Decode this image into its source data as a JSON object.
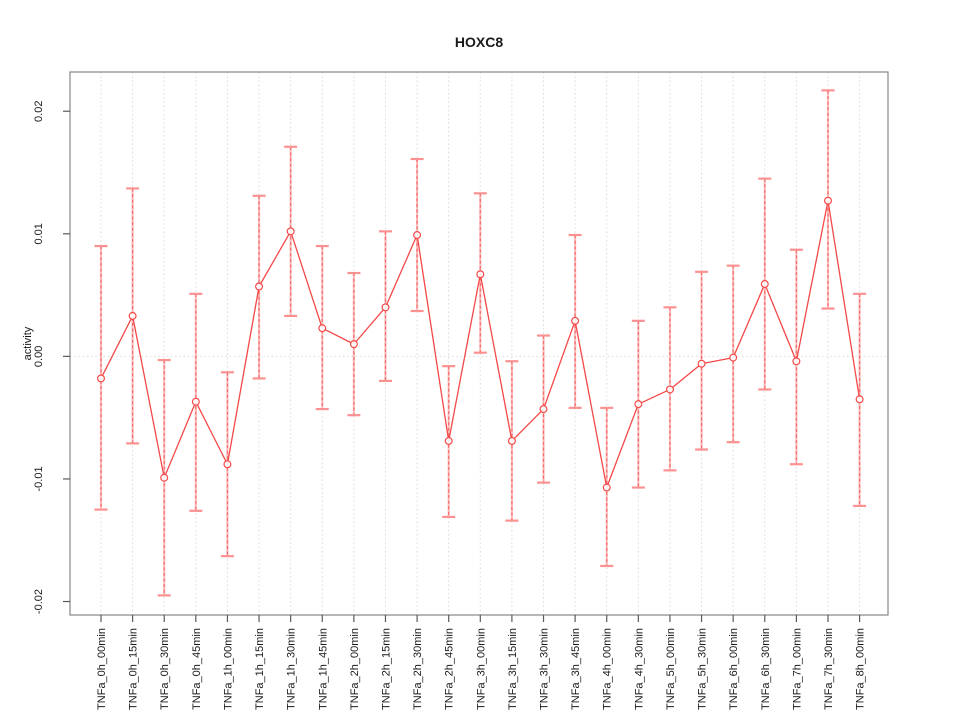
{
  "figure": {
    "background": "#ffffff"
  },
  "chart_data": {
    "type": "line",
    "title": "HOXC8",
    "xlabel": "",
    "ylabel": "activity",
    "legend": "none",
    "grid": {
      "vertical_gridlines": "dotted",
      "zero_line": "dotted"
    },
    "marker": "open-circle",
    "error_bars": true,
    "categories": [
      "TNFa_0h_00min",
      "TNFa_0h_15min",
      "TNFa_0h_30min",
      "TNFa_0h_45min",
      "TNFa_1h_00min",
      "TNFa_1h_15min",
      "TNFa_1h_30min",
      "TNFa_1h_45min",
      "TNFa_2h_00min",
      "TNFa_2h_15min",
      "TNFa_2h_30min",
      "TNFa_2h_45min",
      "TNFa_3h_00min",
      "TNFa_3h_15min",
      "TNFa_3h_30min",
      "TNFa_3h_45min",
      "TNFa_4h_00min",
      "TNFa_4h_30min",
      "TNFa_5h_00min",
      "TNFa_5h_30min",
      "TNFa_6h_00min",
      "TNFa_6h_30min",
      "TNFa_7h_00min",
      "TNFa_7h_30min",
      "TNFa_8h_00min"
    ],
    "series": [
      {
        "name": "HOXC8",
        "values": [
          -0.0018,
          0.0033,
          -0.0099,
          -0.0037,
          -0.0088,
          0.0057,
          0.0102,
          0.0023,
          0.001,
          0.004,
          0.0099,
          -0.0069,
          0.0067,
          -0.0069,
          -0.0043,
          0.0029,
          -0.0107,
          -0.0039,
          -0.0027,
          -0.0006,
          -0.0001,
          0.0059,
          -0.0004,
          0.0127,
          -0.0035
        ],
        "err_high": [
          0.009,
          0.0137,
          -0.0003,
          0.0051,
          -0.0013,
          0.0131,
          0.0171,
          0.009,
          0.0068,
          0.0102,
          0.0161,
          -0.0008,
          0.0133,
          -0.0004,
          0.0017,
          0.0099,
          -0.0042,
          0.0029,
          0.004,
          0.0069,
          0.0074,
          0.0145,
          0.0087,
          0.0217,
          0.0051
        ],
        "err_low": [
          -0.0125,
          -0.0071,
          -0.0195,
          -0.0126,
          -0.0163,
          -0.0018,
          0.0033,
          -0.0043,
          -0.0048,
          -0.002,
          0.0037,
          -0.0131,
          0.0003,
          -0.0134,
          -0.0103,
          -0.0042,
          -0.0171,
          -0.0107,
          -0.0093,
          -0.0076,
          -0.007,
          -0.0027,
          -0.0088,
          0.0039,
          -0.0122
        ]
      }
    ],
    "ylim": [
      -0.0211,
      0.0232
    ],
    "yticks": [
      0.02,
      0.01,
      0.0,
      -0.01,
      -0.02
    ],
    "ytick_labels": [
      "0.02",
      "0.01",
      "0.00",
      "-0.01",
      "-0.02"
    ],
    "colors": {
      "series_line": "#f54848",
      "marker_stroke": "#f54848",
      "error_bar_fill": "#fb9191",
      "error_bar_dash": "#f76a6a",
      "gridline": "#dcdcdc",
      "axis_frame": "#878787",
      "tick": "#5a5a5a",
      "text": "#1a1a1a",
      "background": "#ffffff"
    }
  }
}
